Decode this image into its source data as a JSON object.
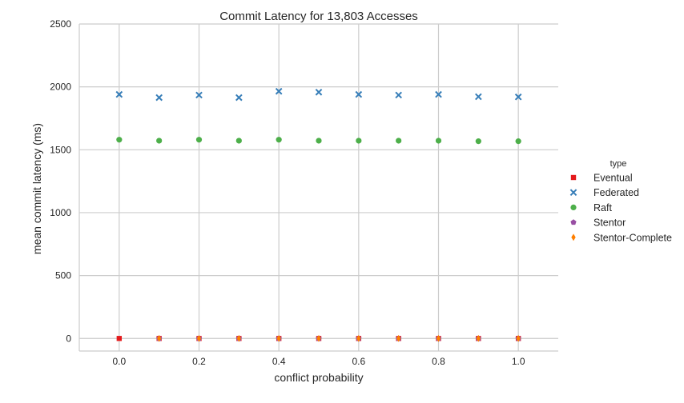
{
  "chart_data": {
    "type": "scatter",
    "title": "Commit Latency for 13,803 Accesses",
    "xlabel": "conflict probability",
    "ylabel": "mean commit latency (ms)",
    "xlim": [
      -0.1,
      1.1
    ],
    "ylim": [
      -100,
      2500
    ],
    "xticks": [
      "0.0",
      "0.2",
      "0.4",
      "0.6",
      "0.8",
      "1.0"
    ],
    "yticks": [
      "0",
      "500",
      "1000",
      "1500",
      "2000",
      "2500"
    ],
    "grid": true,
    "legend_position": "right",
    "legend_title": "type",
    "x": [
      0.0,
      0.1,
      0.2,
      0.3,
      0.4,
      0.5,
      0.6,
      0.7,
      0.8,
      0.9,
      1.0
    ],
    "series": [
      {
        "name": "Eventual",
        "marker": "square",
        "color": "#e41a1c",
        "values": [
          0,
          0,
          0,
          0,
          0,
          0,
          0,
          0,
          0,
          0,
          0
        ]
      },
      {
        "name": "Federated",
        "marker": "x",
        "color": "#377eb8",
        "values": [
          1940,
          1915,
          1935,
          1915,
          1965,
          1958,
          1940,
          1935,
          1940,
          1922,
          1920
        ]
      },
      {
        "name": "Raft",
        "marker": "circle",
        "color": "#4daf4a",
        "values": [
          1580,
          1572,
          1580,
          1572,
          1580,
          1572,
          1572,
          1572,
          1572,
          1568,
          1568
        ]
      },
      {
        "name": "Stentor",
        "marker": "pentagon",
        "color": "#984ea3",
        "values": [
          null,
          0,
          0,
          0,
          0,
          0,
          0,
          0,
          0,
          0,
          0
        ]
      },
      {
        "name": "Stentor-Complete",
        "marker": "diamond",
        "color": "#ff7f00",
        "values": [
          null,
          0,
          0,
          0,
          0,
          0,
          0,
          0,
          0,
          0,
          0
        ]
      }
    ]
  }
}
